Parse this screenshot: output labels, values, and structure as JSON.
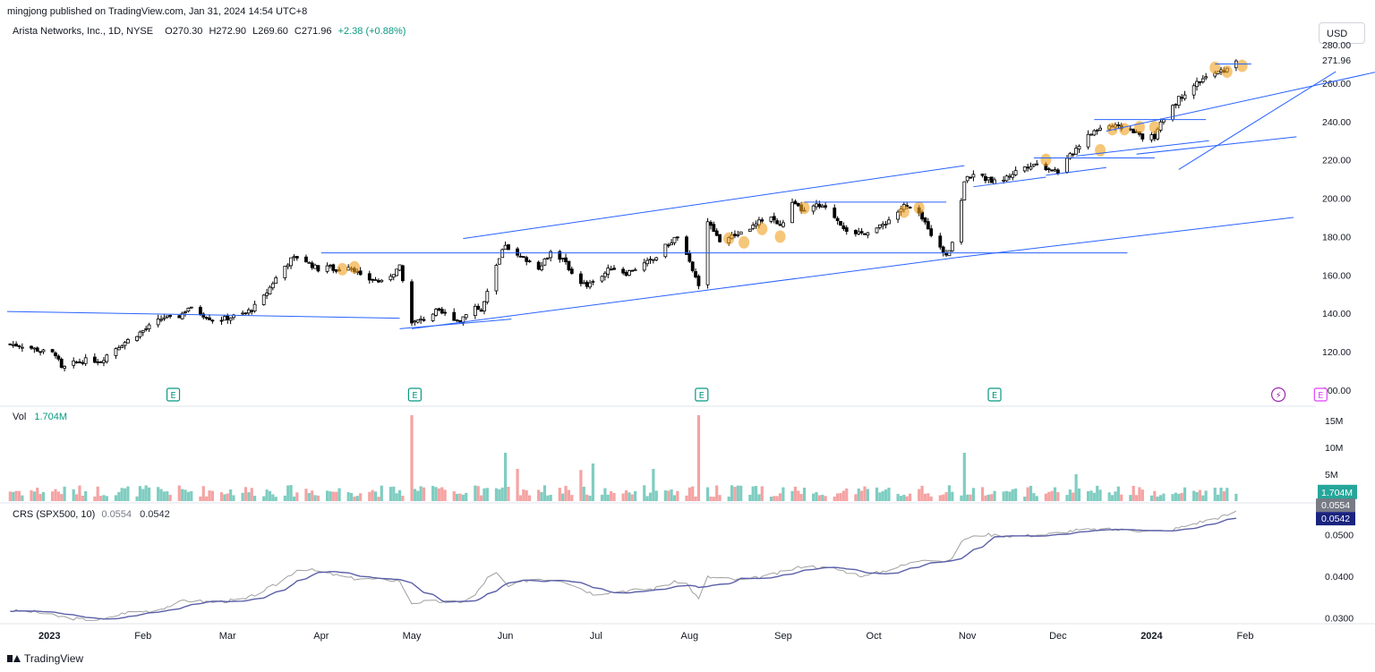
{
  "header": {
    "published": "mingjong published on TradingView.com, Jan 31, 2024 14:54 UTC+8"
  },
  "legend": {
    "title": "Arista Networks, Inc., 1D, NYSE",
    "open": "O270.30",
    "high": "H272.90",
    "low": "L269.60",
    "close": "C271.96",
    "change": "+2.38 (+0.88%)"
  },
  "currency": "USD",
  "volume_legend": {
    "label": "Vol",
    "value": "1.704M"
  },
  "crs_legend": {
    "label": "CRS (SPX500, 10)",
    "value1": "0.0554",
    "value2": "0.0542"
  },
  "footer": {
    "brand": "TradingView"
  },
  "colors": {
    "up": "#ffffff",
    "down": "#000000",
    "wick": "#000000",
    "vol_up": "#7fcdc1",
    "vol_down": "#f5a3a3",
    "trendline": "#2962ff",
    "crs_line": "#a0a0a0",
    "crs_ma": "#5b5fa8",
    "highlight": "#f0a020",
    "earnings": "#089981",
    "dividend": "#9c27b0",
    "e_upcoming": "#e040fb"
  },
  "chart_data": {
    "type": "candlestick",
    "price_axis": {
      "ticks": [
        "100.00",
        "120.00",
        "140.00",
        "160.00",
        "180.00",
        "200.00",
        "220.00",
        "240.00",
        "260.00",
        "280.00"
      ],
      "last_price_label": "271.96",
      "range": [
        100,
        280
      ]
    },
    "volume_axis": {
      "ticks": [
        "5M",
        "10M",
        "15M"
      ],
      "last_label": "1.704M",
      "range": [
        0,
        16
      ]
    },
    "crs_axis": {
      "ticks": [
        "0.0300",
        "0.0400",
        "0.0500"
      ],
      "labels": [
        "0.0554",
        "0.0542"
      ],
      "range": [
        0.028,
        0.058
      ]
    },
    "x_labels": [
      "2023",
      "Feb",
      "Mar",
      "Apr",
      "May",
      "Jun",
      "Jul",
      "Aug",
      "Sep",
      "Oct",
      "Nov",
      "Dec",
      "2024",
      "Feb"
    ],
    "x_label_days": [
      0,
      31,
      59,
      90,
      120,
      151,
      181,
      212,
      243,
      273,
      304,
      334,
      365,
      396
    ],
    "date_range_days": [
      -14,
      396
    ],
    "earnings_markers": [
      {
        "day": 41,
        "label": "E"
      },
      {
        "day": 121,
        "label": "E"
      },
      {
        "day": 216,
        "label": "E"
      },
      {
        "day": 313,
        "label": "E"
      },
      {
        "day": 407,
        "label": "⚡",
        "kind": "dividend"
      },
      {
        "day": 421,
        "label": "E",
        "kind": "upcoming"
      }
    ],
    "price_anchors": [
      [
        -14,
        124
      ],
      [
        -8,
        123
      ],
      [
        -2,
        120
      ],
      [
        2,
        119
      ],
      [
        4,
        111
      ],
      [
        8,
        114
      ],
      [
        13,
        116
      ],
      [
        17,
        115
      ],
      [
        20,
        120
      ],
      [
        25,
        125
      ],
      [
        30,
        130
      ],
      [
        34,
        134
      ],
      [
        38,
        138
      ],
      [
        42,
        137
      ],
      [
        46,
        143
      ],
      [
        50,
        140
      ],
      [
        55,
        136
      ],
      [
        60,
        138
      ],
      [
        65,
        140
      ],
      [
        70,
        146
      ],
      [
        74,
        156
      ],
      [
        77,
        163
      ],
      [
        80,
        168
      ],
      [
        83,
        170
      ],
      [
        86,
        166
      ],
      [
        89,
        163
      ],
      [
        92,
        165
      ],
      [
        95,
        162
      ],
      [
        98,
        166
      ],
      [
        101,
        163
      ],
      [
        104,
        157
      ],
      [
        107,
        158
      ],
      [
        110,
        156
      ],
      [
        113,
        160
      ],
      [
        116,
        164
      ],
      [
        120,
        135
      ],
      [
        124,
        137
      ],
      [
        128,
        141
      ],
      [
        132,
        139
      ],
      [
        136,
        136
      ],
      [
        140,
        145
      ],
      [
        143,
        141
      ],
      [
        147,
        160
      ],
      [
        151,
        176
      ],
      [
        154,
        170
      ],
      [
        158,
        168
      ],
      [
        162,
        164
      ],
      [
        166,
        172
      ],
      [
        170,
        168
      ],
      [
        174,
        159
      ],
      [
        178,
        154
      ],
      [
        182,
        158
      ],
      [
        186,
        164
      ],
      [
        191,
        161
      ],
      [
        196,
        165
      ],
      [
        200,
        168
      ],
      [
        204,
        175
      ],
      [
        208,
        180
      ],
      [
        212,
        166
      ],
      [
        215,
        155
      ],
      [
        217,
        190
      ],
      [
        222,
        178
      ],
      [
        226,
        180
      ],
      [
        230,
        183
      ],
      [
        234,
        186
      ],
      [
        238,
        192
      ],
      [
        242,
        185
      ],
      [
        246,
        197
      ],
      [
        250,
        193
      ],
      [
        254,
        196
      ],
      [
        258,
        194
      ],
      [
        262,
        187
      ],
      [
        266,
        180
      ],
      [
        271,
        183
      ],
      [
        275,
        185
      ],
      [
        279,
        190
      ],
      [
        283,
        196
      ],
      [
        287,
        193
      ],
      [
        291,
        185
      ],
      [
        294,
        175
      ],
      [
        297,
        171
      ],
      [
        300,
        180
      ],
      [
        303,
        209
      ],
      [
        306,
        213
      ],
      [
        310,
        210
      ],
      [
        314,
        208
      ],
      [
        318,
        212
      ],
      [
        322,
        216
      ],
      [
        326,
        218
      ],
      [
        330,
        216
      ],
      [
        334,
        214
      ],
      [
        338,
        222
      ],
      [
        342,
        230
      ],
      [
        346,
        235
      ],
      [
        350,
        238
      ],
      [
        354,
        237
      ],
      [
        358,
        236
      ],
      [
        362,
        232
      ],
      [
        366,
        232
      ],
      [
        370,
        245
      ],
      [
        374,
        252
      ],
      [
        378,
        258
      ],
      [
        382,
        262
      ],
      [
        386,
        265
      ],
      [
        390,
        267
      ],
      [
        393,
        271.96
      ]
    ],
    "volume_spikes": [
      [
        120,
        16
      ],
      [
        215,
        16
      ],
      [
        303,
        9
      ],
      [
        147,
        8
      ],
      [
        151,
        9
      ],
      [
        42,
        7.5
      ],
      [
        180,
        7
      ],
      [
        176,
        5.8
      ],
      [
        200,
        6
      ],
      [
        70,
        6
      ],
      [
        155,
        6
      ],
      [
        340,
        5
      ]
    ],
    "highlights": [
      {
        "day": 97,
        "price": 163
      },
      {
        "day": 101,
        "price": 164
      },
      {
        "day": 225,
        "price": 179
      },
      {
        "day": 230,
        "price": 177
      },
      {
        "day": 236,
        "price": 184
      },
      {
        "day": 242,
        "price": 180
      },
      {
        "day": 250,
        "price": 195
      },
      {
        "day": 283,
        "price": 193
      },
      {
        "day": 288,
        "price": 195
      },
      {
        "day": 330,
        "price": 220
      },
      {
        "day": 348,
        "price": 225
      },
      {
        "day": 352,
        "price": 236
      },
      {
        "day": 356,
        "price": 236
      },
      {
        "day": 361,
        "price": 237
      },
      {
        "day": 366,
        "price": 237
      },
      {
        "day": 386,
        "price": 268
      },
      {
        "day": 390,
        "price": 266
      },
      {
        "day": 395,
        "price": 269
      }
    ],
    "trendlines": [
      {
        "x1": -14,
        "y1": 141,
        "x2": 116,
        "y2": 137.5
      },
      {
        "x1": 116,
        "y1": 132,
        "x2": 153,
        "y2": 137
      },
      {
        "x1": 137,
        "y1": 179,
        "x2": 303,
        "y2": 217
      },
      {
        "x1": 90,
        "y1": 171.5,
        "x2": 357,
        "y2": 171.5
      },
      {
        "x1": 120,
        "y1": 132,
        "x2": 300,
        "y2": 169
      },
      {
        "x1": 300,
        "y1": 169,
        "x2": 412,
        "y2": 190
      },
      {
        "x1": 250,
        "y1": 198,
        "x2": 297,
        "y2": 198
      },
      {
        "x1": 306,
        "y1": 206,
        "x2": 330,
        "y2": 211
      },
      {
        "x1": 326,
        "y1": 221,
        "x2": 366,
        "y2": 221
      },
      {
        "x1": 330,
        "y1": 212,
        "x2": 350,
        "y2": 216
      },
      {
        "x1": 346,
        "y1": 241,
        "x2": 383,
        "y2": 241
      },
      {
        "x1": 340,
        "y1": 222,
        "x2": 384,
        "y2": 230
      },
      {
        "x1": 350,
        "y1": 235,
        "x2": 440,
        "y2": 266
      },
      {
        "x1": 360,
        "y1": 223,
        "x2": 413,
        "y2": 232
      },
      {
        "x1": 374,
        "y1": 215,
        "x2": 426,
        "y2": 266
      },
      {
        "x1": 386,
        "y1": 270,
        "x2": 398,
        "y2": 270
      }
    ],
    "crs_anchors": [
      [
        -14,
        0.0318
      ],
      [
        -5,
        0.0315
      ],
      [
        2,
        0.0305
      ],
      [
        10,
        0.0297
      ],
      [
        18,
        0.0296
      ],
      [
        25,
        0.0313
      ],
      [
        35,
        0.0318
      ],
      [
        45,
        0.0342
      ],
      [
        55,
        0.0338
      ],
      [
        65,
        0.0345
      ],
      [
        75,
        0.038
      ],
      [
        83,
        0.042
      ],
      [
        90,
        0.041
      ],
      [
        100,
        0.0395
      ],
      [
        110,
        0.0392
      ],
      [
        116,
        0.039
      ],
      [
        119,
        0.0335
      ],
      [
        125,
        0.034
      ],
      [
        135,
        0.0338
      ],
      [
        140,
        0.0345
      ],
      [
        147,
        0.0415
      ],
      [
        152,
        0.0375
      ],
      [
        160,
        0.0395
      ],
      [
        170,
        0.039
      ],
      [
        180,
        0.0358
      ],
      [
        190,
        0.0365
      ],
      [
        200,
        0.037
      ],
      [
        210,
        0.0392
      ],
      [
        215,
        0.0345
      ],
      [
        218,
        0.0398
      ],
      [
        230,
        0.039
      ],
      [
        240,
        0.0405
      ],
      [
        250,
        0.0425
      ],
      [
        260,
        0.0418
      ],
      [
        270,
        0.04
      ],
      [
        280,
        0.042
      ],
      [
        290,
        0.0442
      ],
      [
        298,
        0.0435
      ],
      [
        303,
        0.049
      ],
      [
        310,
        0.05
      ],
      [
        320,
        0.0496
      ],
      [
        330,
        0.05
      ],
      [
        340,
        0.051
      ],
      [
        350,
        0.0512
      ],
      [
        360,
        0.051
      ],
      [
        370,
        0.0508
      ],
      [
        380,
        0.0528
      ],
      [
        388,
        0.0542
      ],
      [
        393,
        0.0554
      ]
    ]
  }
}
